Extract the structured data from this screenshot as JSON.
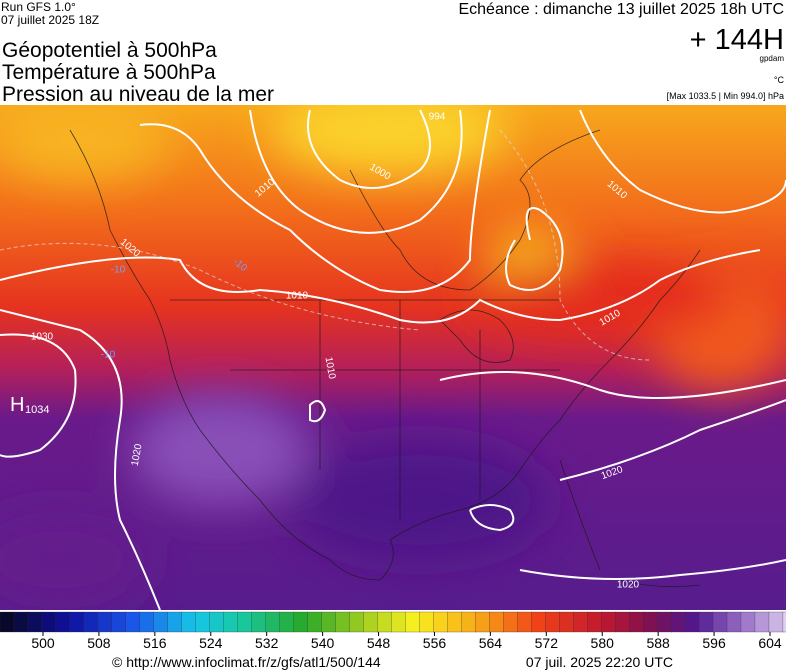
{
  "header": {
    "run": "Run GFS 1.0°",
    "run_date": "07 juillet 2025 18Z",
    "titles": [
      "Géopotentiel à 500hPa",
      "Température à 500hPa",
      "Pression au niveau de la mer"
    ],
    "forecast": "Echéance : dimanche 13 juillet 2025 18h UTC",
    "lead": "+ 144H",
    "unit_geo": "gpdam",
    "unit_temp": "°C",
    "pressure_range": "[Max 1033.5 | Min 994.0] hPa"
  },
  "map": {
    "high_letter": "H",
    "high_value": "1034",
    "labels": [
      "994",
      "1000",
      "1010",
      "1010",
      "1010",
      "1010",
      "1010",
      "1020",
      "1030",
      "1020",
      "1020",
      "1020",
      "-10",
      "-10",
      "-10"
    ]
  },
  "colorbar": {
    "ticks": [
      500,
      508,
      516,
      524,
      532,
      540,
      548,
      556,
      564,
      572,
      580,
      588,
      596,
      604
    ]
  },
  "footer": {
    "source": "© http://www.infoclimat.fr/z/gfs/atl1/500/144",
    "generated": "07 juil. 2025 22:20 UTC"
  }
}
